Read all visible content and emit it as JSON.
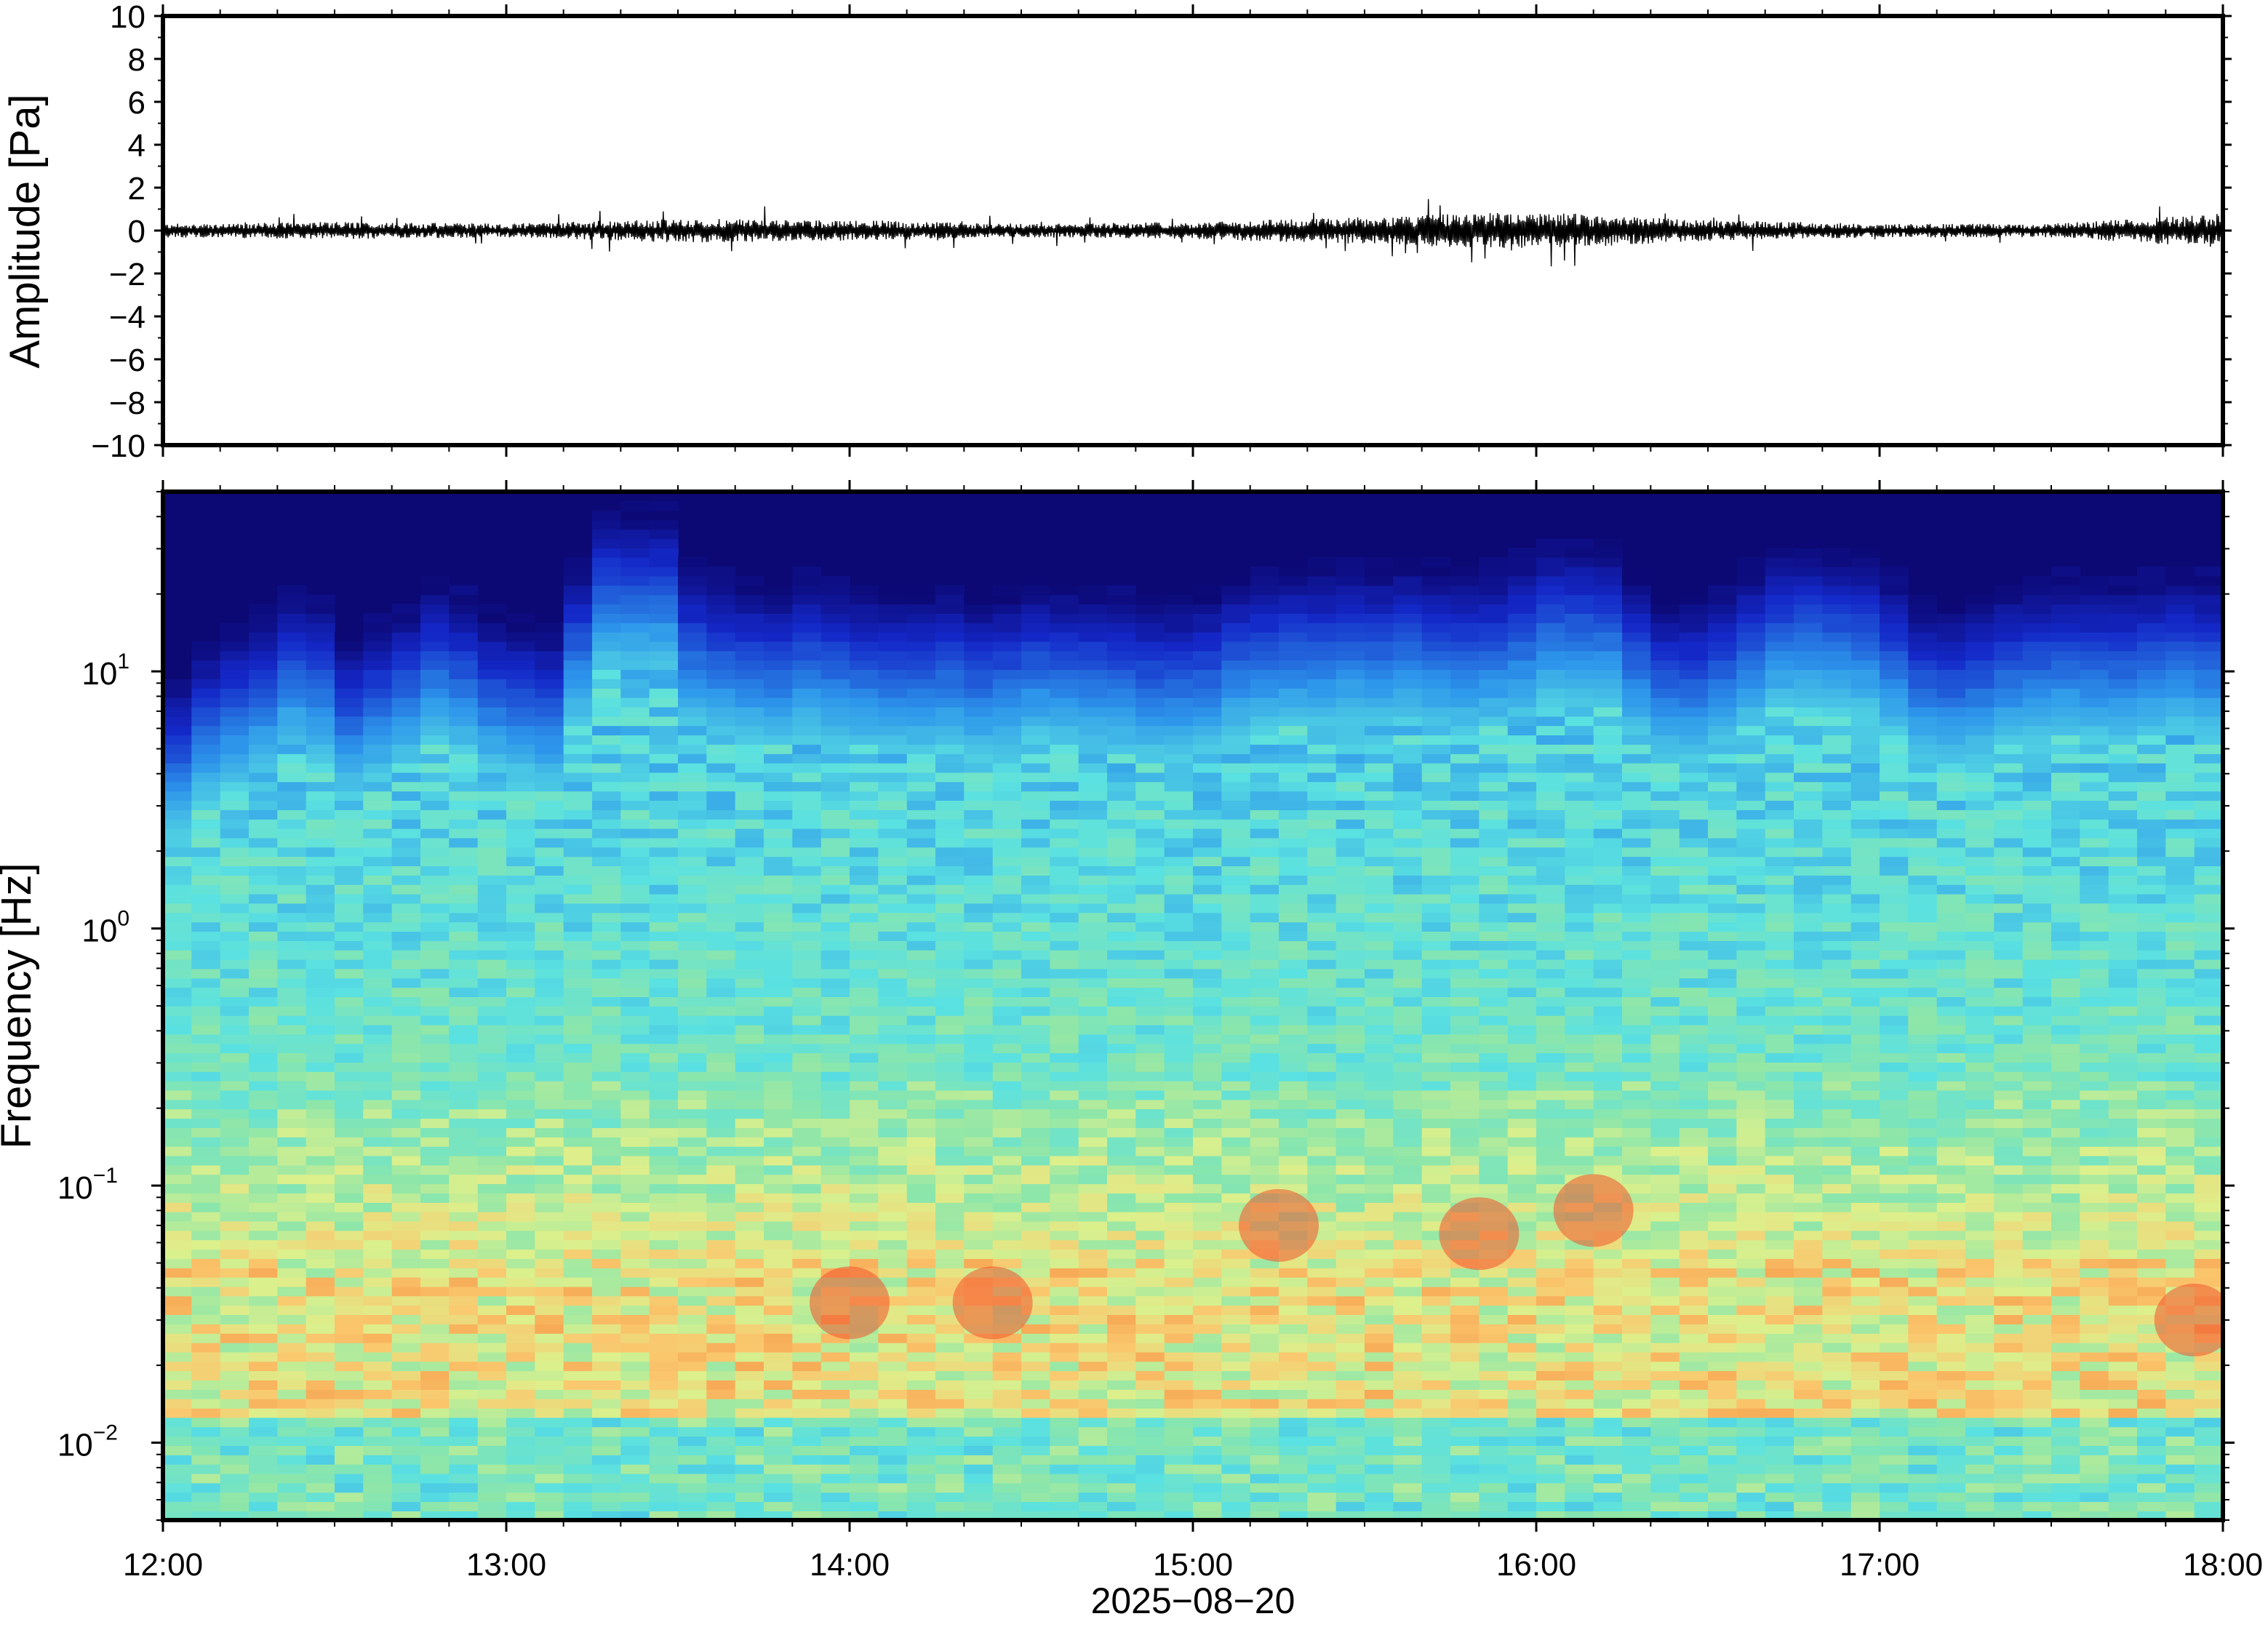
{
  "figure": {
    "xlabel": "2025−08−20"
  },
  "chart_data": [
    {
      "type": "line",
      "panel": "waveform",
      "ylabel": "Amplitude [Pa]",
      "ylim": [
        -10,
        10
      ],
      "yticks": [
        10,
        8,
        6,
        4,
        2,
        0,
        -2,
        -4,
        -6,
        -8,
        -10
      ],
      "ytick_labels": [
        "10",
        "8",
        "6",
        "4",
        "2",
        "0",
        "−2",
        "−4",
        "−6",
        "−8",
        "−10"
      ],
      "x_start": "12:00",
      "x_end": "18:00",
      "series": [
        {
          "color": "#000000",
          "envelope_note_hours": [
            0,
            0.5,
            1,
            1.5,
            2,
            2.5,
            3,
            3.5,
            4,
            4.5,
            5,
            5.5,
            6
          ],
          "approx_amplitude": [
            0.2,
            0.25,
            0.2,
            0.35,
            0.3,
            0.2,
            0.25,
            0.4,
            0.55,
            0.3,
            0.2,
            0.2,
            0.5
          ]
        }
      ],
      "grid": false
    },
    {
      "type": "heatmap",
      "panel": "spectrogram",
      "ylabel": "Frequency [Hz]",
      "yscale": "log",
      "ylim": [
        0.005,
        50
      ],
      "yticks": [
        0.01,
        0.1,
        1,
        10
      ],
      "ytick_labels": [
        {
          "base": "10",
          "exp": "−2"
        },
        {
          "base": "10",
          "exp": "−1"
        },
        {
          "base": "10",
          "exp": "0"
        },
        {
          "base": "10",
          "exp": "1"
        }
      ],
      "xticks": [
        "12:00",
        "13:00",
        "14:00",
        "15:00",
        "16:00",
        "17:00",
        "18:00"
      ],
      "xlim": [
        "12:00",
        "18:00"
      ],
      "colormap": "jet",
      "time_bins": 72,
      "upper_cutoff_hz_per_bin": [
        9,
        12,
        14,
        16,
        20,
        18,
        13,
        15,
        17,
        21,
        19,
        16,
        15,
        14,
        25,
        40,
        40,
        40,
        24,
        22,
        21,
        20,
        22,
        21,
        20,
        19,
        19,
        20,
        18,
        19,
        21,
        20,
        20,
        19,
        18,
        18,
        19,
        22,
        23,
        24,
        24,
        25,
        24,
        25,
        24,
        23,
        24,
        26,
        30,
        30,
        29,
        22,
        18,
        18,
        20,
        24,
        28,
        29,
        28,
        27,
        22,
        18,
        17,
        18,
        20,
        21,
        22,
        21,
        21,
        22,
        23,
        22
      ],
      "hot_spots": [
        {
          "time": "14:00",
          "freq_hz": 0.035
        },
        {
          "time": "14:25",
          "freq_hz": 0.035
        },
        {
          "time": "15:15",
          "freq_hz": 0.07
        },
        {
          "time": "15:50",
          "freq_hz": 0.065
        },
        {
          "time": "16:10",
          "freq_hz": 0.08
        },
        {
          "time": "17:55",
          "freq_hz": 0.03
        }
      ],
      "grid": false
    }
  ]
}
